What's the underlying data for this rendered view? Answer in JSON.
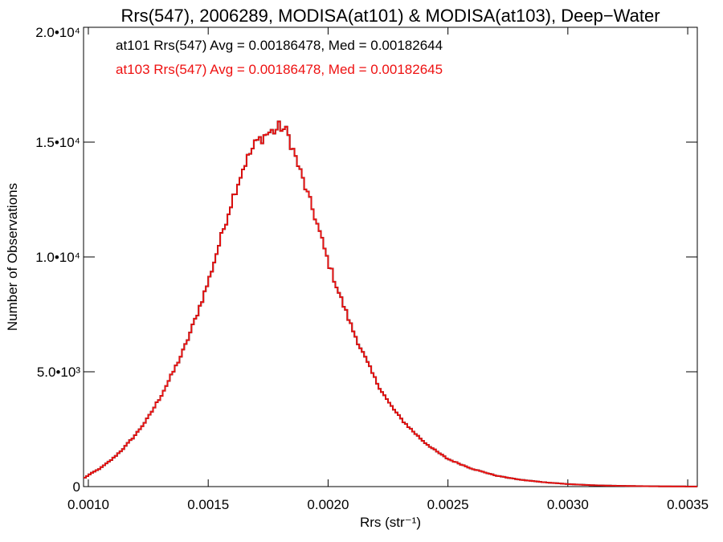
{
  "chart_data": {
    "type": "histogram",
    "title": "Rrs(547), 2006289, MODISA(at101) & MODISA(at103), Deep−Water",
    "xlabel": "Rrs (str⁻¹)",
    "ylabel": "Number of Observations",
    "xlim": [
      0.00098,
      0.00354
    ],
    "ylim": [
      0,
      20000
    ],
    "xticks": [
      {
        "value": 0.001,
        "label": "0.0010"
      },
      {
        "value": 0.0015,
        "label": "0.0015"
      },
      {
        "value": 0.002,
        "label": "0.0020"
      },
      {
        "value": 0.0025,
        "label": "0.0025"
      },
      {
        "value": 0.003,
        "label": "0.0030"
      },
      {
        "value": 0.0035,
        "label": "0.0035"
      }
    ],
    "yticks": [
      {
        "value": 0,
        "label": "0"
      },
      {
        "value": 5000,
        "label": "5.0•10³"
      },
      {
        "value": 10000,
        "label": "1.0•10⁴"
      },
      {
        "value": 15000,
        "label": "1.5•10⁴"
      },
      {
        "value": 20000,
        "label": "2.0•10⁴"
      }
    ],
    "annotations": [
      {
        "text": "at101 Rrs(547) Avg = 0.00186478, Med = 0.00182644",
        "color": "#000000"
      },
      {
        "text": "at103 Rrs(547) Avg = 0.00186478, Med = 0.00182645",
        "color": "#ee1111"
      }
    ],
    "series": [
      {
        "name": "at101",
        "color": "#000000"
      },
      {
        "name": "at103",
        "color": "#ee1111"
      }
    ],
    "bin_width": 1e-05,
    "x": [
      0.00098,
      0.001,
      0.00105,
      0.0011,
      0.00115,
      0.0012,
      0.00125,
      0.0013,
      0.00135,
      0.0014,
      0.00145,
      0.0015,
      0.00155,
      0.0016,
      0.00165,
      0.0017,
      0.00175,
      0.00178,
      0.0018,
      0.00183,
      0.00185,
      0.0019,
      0.00195,
      0.002,
      0.00205,
      0.0021,
      0.00215,
      0.0022,
      0.00225,
      0.0023,
      0.00235,
      0.0024,
      0.00245,
      0.0025,
      0.0026,
      0.0027,
      0.0028,
      0.0029,
      0.003,
      0.0031,
      0.0032,
      0.0033,
      0.0034,
      0.00354
    ],
    "y": [
      350,
      500,
      800,
      1200,
      1700,
      2300,
      3000,
      3900,
      4900,
      6000,
      7400,
      8900,
      10700,
      12500,
      14000,
      15000,
      15400,
      15500,
      15700,
      15400,
      14800,
      13200,
      11600,
      9800,
      8300,
      6900,
      5700,
      4600,
      3700,
      3000,
      2450,
      1950,
      1550,
      1200,
      780,
      480,
      300,
      190,
      110,
      60,
      35,
      20,
      10,
      3
    ]
  }
}
